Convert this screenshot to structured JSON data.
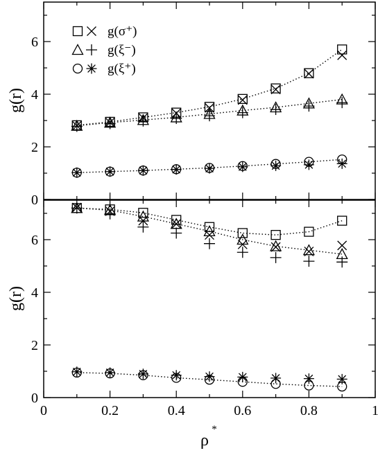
{
  "chart_data": [
    {
      "type": "scatter",
      "panel": "top",
      "ylabel": "g(r)",
      "xlim": [
        0,
        1
      ],
      "ylim": [
        0,
        7.5
      ],
      "yticks": [
        0,
        2,
        4,
        6
      ],
      "show_x_tick_labels": false,
      "legend": [
        {
          "markers": [
            "square",
            "x"
          ],
          "label": "g(σ⁺)"
        },
        {
          "markers": [
            "triangle",
            "plus"
          ],
          "label": "g(ξ⁻)"
        },
        {
          "markers": [
            "circle",
            "star"
          ],
          "label": "g(ξ⁺)"
        }
      ],
      "x": [
        0.1,
        0.2,
        0.3,
        0.4,
        0.5,
        0.6,
        0.7,
        0.8,
        0.9
      ],
      "series": [
        {
          "marker": "square",
          "connected": true,
          "values": [
            2.82,
            2.95,
            3.12,
            3.3,
            3.52,
            3.82,
            4.22,
            4.8,
            5.7
          ]
        },
        {
          "marker": "x",
          "connected": false,
          "values": [
            2.8,
            2.93,
            3.1,
            3.28,
            3.48,
            3.78,
            4.18,
            4.78,
            5.48
          ]
        },
        {
          "marker": "triangle",
          "connected": true,
          "values": [
            2.8,
            2.92,
            3.02,
            3.12,
            3.25,
            3.38,
            3.5,
            3.65,
            3.8
          ]
        },
        {
          "marker": "plus",
          "connected": false,
          "values": [
            2.78,
            2.88,
            2.98,
            3.08,
            3.18,
            3.3,
            3.42,
            3.55,
            3.68
          ]
        },
        {
          "marker": "circle",
          "connected": true,
          "values": [
            1.02,
            1.06,
            1.1,
            1.15,
            1.2,
            1.27,
            1.35,
            1.43,
            1.52
          ]
        },
        {
          "marker": "star",
          "connected": false,
          "values": [
            1.02,
            1.06,
            1.1,
            1.14,
            1.18,
            1.24,
            1.28,
            1.32,
            1.36
          ]
        }
      ]
    },
    {
      "type": "scatter",
      "panel": "bottom",
      "xlabel": "ρ*",
      "ylabel": "g(r)",
      "xlim": [
        0,
        1
      ],
      "ylim": [
        0,
        7.5
      ],
      "xticks": [
        0,
        0.2,
        0.4,
        0.6,
        0.8,
        1
      ],
      "xtick_labels": [
        "0",
        "0.2",
        "0.4",
        "0.6",
        "0.8",
        "1"
      ],
      "yticks": [
        0,
        2,
        4,
        6
      ],
      "x": [
        0.1,
        0.2,
        0.3,
        0.4,
        0.5,
        0.6,
        0.7,
        0.8,
        0.9
      ],
      "series": [
        {
          "marker": "square",
          "connected": true,
          "values": [
            7.2,
            7.15,
            7.02,
            6.75,
            6.48,
            6.25,
            6.18,
            6.3,
            6.72
          ]
        },
        {
          "marker": "x",
          "connected": false,
          "values": [
            7.22,
            7.08,
            6.72,
            6.6,
            6.18,
            5.82,
            5.72,
            5.55,
            5.78
          ]
        },
        {
          "marker": "triangle",
          "connected": true,
          "values": [
            7.2,
            7.12,
            6.88,
            6.6,
            6.32,
            6.0,
            5.75,
            5.6,
            5.45
          ]
        },
        {
          "marker": "plus",
          "connected": false,
          "values": [
            7.2,
            6.98,
            6.48,
            6.25,
            5.85,
            5.52,
            5.32,
            5.18,
            5.15
          ]
        },
        {
          "marker": "circle",
          "connected": true,
          "values": [
            0.95,
            0.92,
            0.85,
            0.75,
            0.68,
            0.6,
            0.52,
            0.46,
            0.42
          ]
        },
        {
          "marker": "star",
          "connected": false,
          "values": [
            0.98,
            0.95,
            0.9,
            0.85,
            0.8,
            0.78,
            0.74,
            0.72,
            0.7
          ]
        }
      ]
    }
  ]
}
